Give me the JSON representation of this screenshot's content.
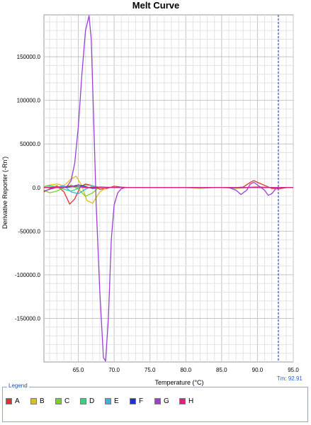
{
  "chart_data": {
    "type": "line",
    "title": "Melt Curve",
    "xlabel": "Temperature (°C)",
    "ylabel": "Derivative Reporter (-Rn')",
    "xlim": [
      60.2,
      95.0
    ],
    "ylim": [
      -200000,
      198000
    ],
    "x_ticks": [
      65.0,
      70.0,
      75.0,
      80.0,
      85.0,
      90.0,
      95.0
    ],
    "x_tick_labels": [
      "65.0",
      "70.0",
      "75.0",
      "80.0",
      "85.0",
      "90.0",
      "95.0"
    ],
    "y_ticks": [
      150000,
      100000,
      50000,
      0,
      -50000,
      -100000,
      -150000
    ],
    "y_tick_labels": [
      "150000.0",
      "100000.0",
      "50000.0",
      "0.0",
      "-50000.0",
      "-100000.0",
      "-150000.0"
    ],
    "grid": true,
    "tm_marker": {
      "x": 92.91,
      "label": "Tm: 92.91",
      "color": "#1f3fa8"
    },
    "series": [
      {
        "name": "A",
        "color": "#e03030",
        "x": [
          60.2,
          61,
          62,
          63,
          63.8,
          64.5,
          65.3,
          66,
          67,
          68,
          69,
          70,
          71,
          72,
          75,
          80,
          85,
          86,
          87,
          88,
          89,
          89.5,
          90,
          91,
          92,
          93,
          94,
          95
        ],
        "y": [
          -5000,
          -1500,
          2000,
          -5000,
          -19000,
          -13000,
          1000,
          4000,
          2000,
          -2000,
          -1000,
          1500,
          500,
          0,
          0,
          0,
          0,
          0,
          0,
          500,
          6000,
          8000,
          6000,
          2500,
          -1000,
          -1500,
          0,
          0
        ]
      },
      {
        "name": "B",
        "color": "#d8c020",
        "x": [
          60.2,
          61,
          62,
          63,
          64,
          64.7,
          65.5,
          66.2,
          67,
          68,
          69,
          70,
          72,
          80,
          95
        ],
        "y": [
          1000,
          3000,
          4000,
          2000,
          10000,
          13000,
          2000,
          -15000,
          -18000,
          -5000,
          500,
          0,
          0,
          0,
          0
        ]
      },
      {
        "name": "C",
        "color": "#7ad020",
        "x": [
          60.2,
          61,
          62,
          63,
          64,
          65,
          66,
          67,
          68,
          69,
          70,
          80,
          81,
          82,
          83,
          84,
          85,
          86,
          87,
          88,
          89,
          90,
          91,
          92,
          93,
          95
        ],
        "y": [
          -3000,
          -6000,
          -4000,
          0,
          3000,
          -2000,
          -10000,
          -6000,
          1000,
          500,
          0,
          0,
          -500,
          -1000,
          -500,
          0,
          0,
          -500,
          -1000,
          -500,
          500,
          1000,
          500,
          0,
          0,
          0
        ]
      },
      {
        "name": "D",
        "color": "#3ad080",
        "x": [
          60.2,
          61,
          62,
          63,
          64,
          65,
          66,
          67,
          68,
          69,
          70,
          95
        ],
        "y": [
          1000,
          2000,
          1000,
          -2000,
          -4000,
          -1000,
          3000,
          2000,
          0,
          0,
          0,
          0
        ]
      },
      {
        "name": "E",
        "color": "#30b8d8",
        "x": [
          60.2,
          62,
          63,
          64,
          65,
          66,
          67,
          68,
          69,
          70,
          95
        ],
        "y": [
          0,
          500,
          2000,
          -5000,
          -7000,
          -2000,
          1500,
          500,
          0,
          0,
          0
        ]
      },
      {
        "name": "F",
        "color": "#2030d0",
        "x": [
          60.2,
          63,
          64,
          65,
          66,
          67,
          68,
          70,
          95
        ],
        "y": [
          0,
          0,
          1000,
          3000,
          1000,
          -1000,
          0,
          0,
          0
        ]
      },
      {
        "name": "G",
        "color": "#9a40d8",
        "x": [
          60.2,
          61,
          62,
          63,
          63.5,
          64,
          64.5,
          65,
          65.5,
          66,
          66.5,
          66.8,
          67.1,
          67.5,
          68,
          68.5,
          68.8,
          69.2,
          69.6,
          70,
          70.5,
          71,
          71.5,
          72,
          80,
          85,
          86,
          87,
          87.7,
          88.5,
          89,
          89.5,
          90,
          90.5,
          91,
          91.5,
          92,
          92.5,
          93,
          94,
          95
        ],
        "y": [
          -4000,
          -2000,
          0,
          0,
          2000,
          8000,
          28000,
          70000,
          130000,
          180000,
          197000,
          170000,
          90000,
          -20000,
          -120000,
          -195000,
          -199000,
          -150000,
          -60000,
          -20000,
          -6000,
          -1500,
          0,
          0,
          0,
          0,
          0,
          -3000,
          -8000,
          -3000,
          4000,
          6000,
          3000,
          0,
          -3000,
          -9000,
          -7000,
          -2000,
          0,
          0,
          0
        ]
      },
      {
        "name": "H",
        "color": "#e02080",
        "x": [
          60.2,
          62,
          63,
          64,
          65,
          66,
          67,
          68,
          70,
          75,
          80,
          90,
          95
        ],
        "y": [
          0,
          500,
          500,
          1500,
          1000,
          0,
          200,
          0,
          0,
          0,
          0,
          0,
          0
        ]
      }
    ]
  },
  "legend": {
    "title": "Legend",
    "items": [
      {
        "label": "A",
        "color": "#e03030"
      },
      {
        "label": "B",
        "color": "#d8c020"
      },
      {
        "label": "C",
        "color": "#7ad020"
      },
      {
        "label": "D",
        "color": "#3ad080"
      },
      {
        "label": "E",
        "color": "#30b8d8"
      },
      {
        "label": "F",
        "color": "#2030d0"
      },
      {
        "label": "G",
        "color": "#9a40d8"
      },
      {
        "label": "H",
        "color": "#e02080"
      }
    ]
  }
}
